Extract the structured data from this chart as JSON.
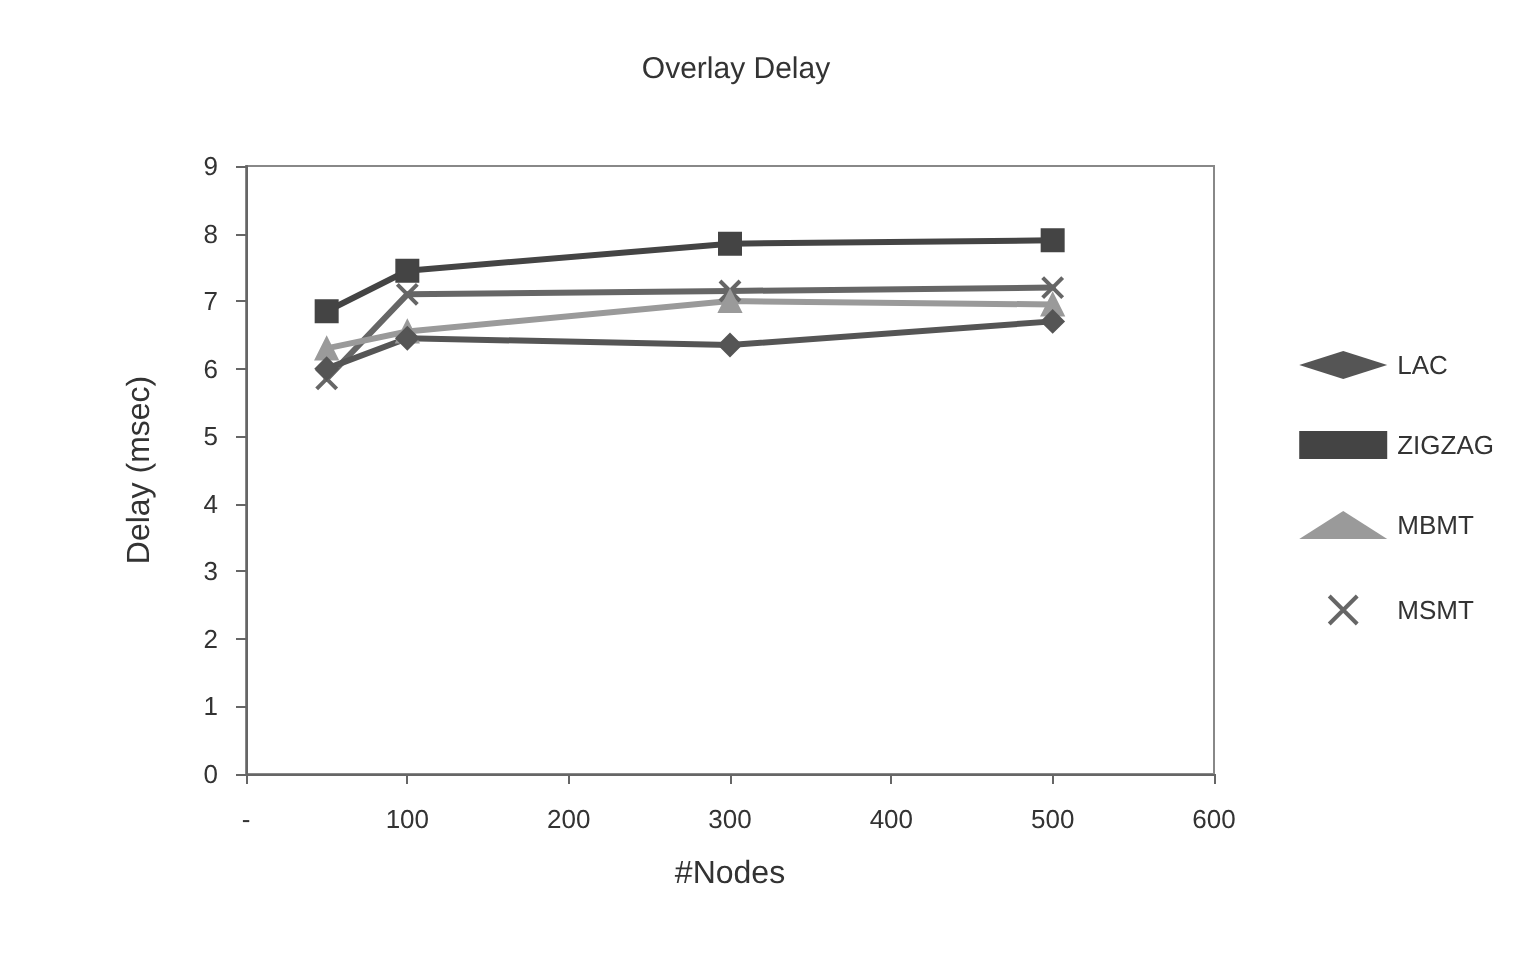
{
  "chart_data": {
    "type": "line",
    "title": "Overlay Delay",
    "xlabel": "#Nodes",
    "ylabel": "Delay (msec)",
    "x": [
      50,
      100,
      300,
      500
    ],
    "series": [
      {
        "name": "LAC",
        "color": "#555555",
        "marker": "diamond",
        "values": [
          6.0,
          6.45,
          6.35,
          6.7
        ]
      },
      {
        "name": "ZIGZAG",
        "color": "#444444",
        "marker": "square",
        "values": [
          6.85,
          7.45,
          7.85,
          7.9
        ]
      },
      {
        "name": "MBMT",
        "color": "#9a9a9a",
        "marker": "triangle",
        "values": [
          6.3,
          6.55,
          7.0,
          6.95
        ]
      },
      {
        "name": "MSMT",
        "color": "#666666",
        "marker": "cross",
        "values": [
          5.85,
          7.1,
          7.15,
          7.2
        ]
      }
    ],
    "xlim": [
      0,
      600
    ],
    "xticks": [
      {
        "value": 0,
        "label": "-"
      },
      100,
      200,
      300,
      400,
      500,
      600
    ],
    "ylim": [
      0,
      9
    ],
    "yticks": [
      0,
      1,
      2,
      3,
      4,
      5,
      6,
      7,
      8,
      9
    ],
    "grid": false,
    "legend": "right"
  }
}
